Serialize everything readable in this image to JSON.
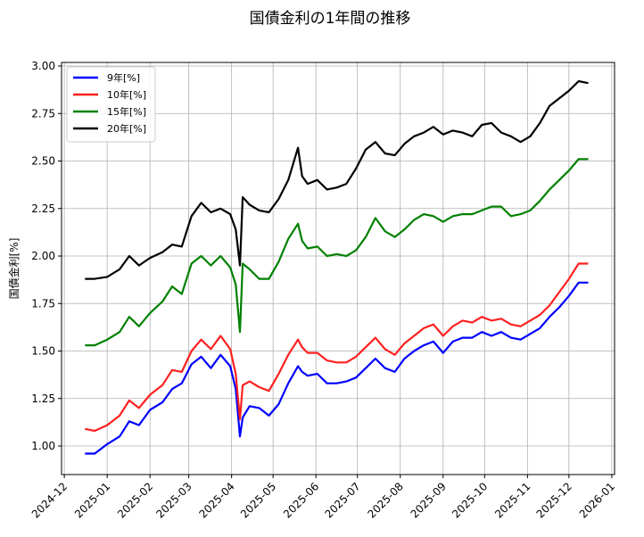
{
  "chart_data": {
    "type": "line",
    "title": "国債金利の1年間の推移",
    "xlabel": "",
    "ylabel": "国債金利[%]",
    "ylim": [
      0.85,
      3.02
    ],
    "xlim": [
      "2024-11-29",
      "2026-01-03"
    ],
    "grid": true,
    "legend_position": "upper left",
    "x_ticks": [
      "2024-12",
      "2025-01",
      "2025-02",
      "2025-03",
      "2025-04",
      "2025-05",
      "2025-06",
      "2025-07",
      "2025-08",
      "2025-09",
      "2025-10",
      "2025-11",
      "2025-12",
      "2026-01"
    ],
    "y_ticks": [
      "1.00",
      "1.25",
      "1.50",
      "1.75",
      "2.00",
      "2.25",
      "2.50",
      "2.75",
      "3.00"
    ],
    "x": [
      "2024-12-16",
      "2024-12-23",
      "2025-01-01",
      "2025-01-10",
      "2025-01-17",
      "2025-01-24",
      "2025-02-01",
      "2025-02-10",
      "2025-02-17",
      "2025-02-24",
      "2025-03-03",
      "2025-03-10",
      "2025-03-17",
      "2025-03-24",
      "2025-03-31",
      "2025-04-04",
      "2025-04-07",
      "2025-04-09",
      "2025-04-14",
      "2025-04-21",
      "2025-04-28",
      "2025-05-05",
      "2025-05-12",
      "2025-05-19",
      "2025-05-22",
      "2025-05-26",
      "2025-06-02",
      "2025-06-09",
      "2025-06-16",
      "2025-06-23",
      "2025-06-30",
      "2025-07-07",
      "2025-07-14",
      "2025-07-21",
      "2025-07-28",
      "2025-08-04",
      "2025-08-11",
      "2025-08-18",
      "2025-08-25",
      "2025-09-01",
      "2025-09-08",
      "2025-09-15",
      "2025-09-22",
      "2025-09-29",
      "2025-10-06",
      "2025-10-13",
      "2025-10-20",
      "2025-10-27",
      "2025-11-03",
      "2025-11-10",
      "2025-11-17",
      "2025-11-24",
      "2025-12-01",
      "2025-12-08",
      "2025-12-15"
    ],
    "series": [
      {
        "name": "9年[%]",
        "color": "#0000ff",
        "values": [
          0.96,
          0.96,
          1.01,
          1.05,
          1.13,
          1.11,
          1.19,
          1.23,
          1.3,
          1.33,
          1.43,
          1.47,
          1.41,
          1.48,
          1.42,
          1.3,
          1.05,
          1.15,
          1.21,
          1.2,
          1.16,
          1.22,
          1.33,
          1.42,
          1.39,
          1.37,
          1.38,
          1.33,
          1.33,
          1.34,
          1.36,
          1.41,
          1.46,
          1.41,
          1.39,
          1.46,
          1.5,
          1.53,
          1.55,
          1.49,
          1.55,
          1.57,
          1.57,
          1.6,
          1.58,
          1.6,
          1.57,
          1.56,
          1.59,
          1.62,
          1.68,
          1.73,
          1.79,
          1.86,
          1.86
        ]
      },
      {
        "name": "10年[%]",
        "color": "#ff2020",
        "values": [
          1.09,
          1.08,
          1.11,
          1.16,
          1.24,
          1.2,
          1.27,
          1.32,
          1.4,
          1.39,
          1.5,
          1.56,
          1.51,
          1.58,
          1.51,
          1.38,
          1.14,
          1.32,
          1.34,
          1.31,
          1.29,
          1.38,
          1.48,
          1.56,
          1.52,
          1.49,
          1.49,
          1.45,
          1.44,
          1.44,
          1.47,
          1.52,
          1.57,
          1.51,
          1.48,
          1.54,
          1.58,
          1.62,
          1.64,
          1.58,
          1.63,
          1.66,
          1.65,
          1.68,
          1.66,
          1.67,
          1.64,
          1.63,
          1.66,
          1.69,
          1.74,
          1.81,
          1.88,
          1.96,
          1.96
        ]
      },
      {
        "name": "15年[%]",
        "color": "#008000",
        "values": [
          1.53,
          1.53,
          1.56,
          1.6,
          1.68,
          1.63,
          1.7,
          1.76,
          1.84,
          1.8,
          1.96,
          2.0,
          1.95,
          2.0,
          1.94,
          1.85,
          1.6,
          1.96,
          1.93,
          1.88,
          1.88,
          1.97,
          2.09,
          2.17,
          2.08,
          2.04,
          2.05,
          2.0,
          2.01,
          2.0,
          2.03,
          2.1,
          2.2,
          2.13,
          2.1,
          2.14,
          2.19,
          2.22,
          2.21,
          2.18,
          2.21,
          2.22,
          2.22,
          2.24,
          2.26,
          2.26,
          2.21,
          2.22,
          2.24,
          2.29,
          2.35,
          2.4,
          2.45,
          2.51,
          2.51
        ]
      },
      {
        "name": "20年[%]",
        "color": "#000000",
        "values": [
          1.88,
          1.88,
          1.89,
          1.93,
          2.0,
          1.95,
          1.99,
          2.02,
          2.06,
          2.05,
          2.21,
          2.28,
          2.23,
          2.25,
          2.22,
          2.14,
          1.95,
          2.31,
          2.27,
          2.24,
          2.23,
          2.3,
          2.4,
          2.57,
          2.42,
          2.38,
          2.4,
          2.35,
          2.36,
          2.38,
          2.46,
          2.56,
          2.6,
          2.54,
          2.53,
          2.59,
          2.63,
          2.65,
          2.68,
          2.64,
          2.66,
          2.65,
          2.63,
          2.69,
          2.7,
          2.65,
          2.63,
          2.6,
          2.63,
          2.7,
          2.79,
          2.83,
          2.87,
          2.92,
          2.91
        ]
      }
    ]
  }
}
